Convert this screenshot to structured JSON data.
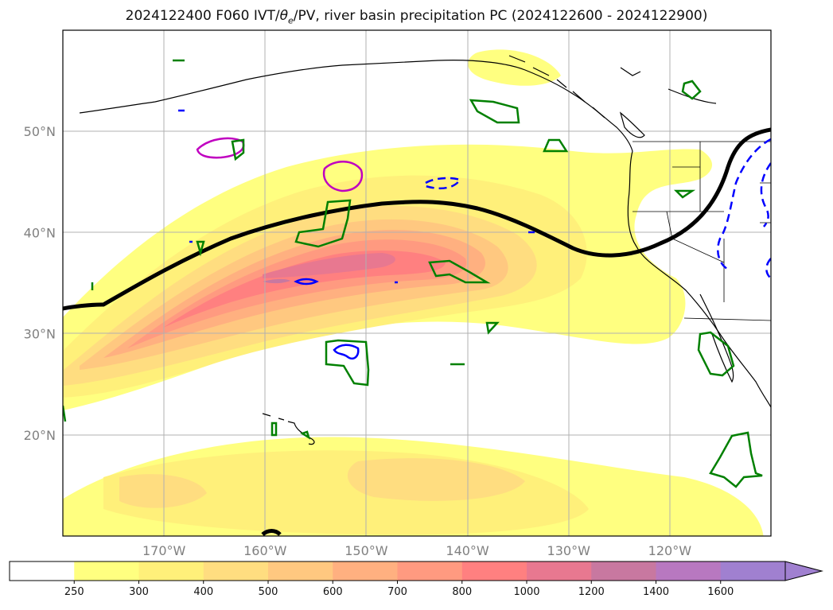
{
  "title": {
    "prefix": "2024122400 F060 IVT/",
    "theta": "θ",
    "theta_sub": "e",
    "suffix": "/PV, river basin precipitation PC (2024122600 - 2024122900)"
  },
  "map": {
    "projection": "plate-carree",
    "lon_range": [
      -180,
      -110
    ],
    "lat_range": [
      10,
      60
    ],
    "grid": true,
    "lat_ticks": [
      {
        "value": 50,
        "label": "50°N"
      },
      {
        "value": 40,
        "label": "40°N"
      },
      {
        "value": 30,
        "label": "30°N"
      },
      {
        "value": 20,
        "label": "20°N"
      }
    ],
    "lon_ticks": [
      {
        "value": -170,
        "label": "170°W"
      },
      {
        "value": -160,
        "label": "160°W"
      },
      {
        "value": -150,
        "label": "150°W"
      },
      {
        "value": -140,
        "label": "140°W"
      },
      {
        "value": -130,
        "label": "130°W"
      },
      {
        "value": -120,
        "label": "120°W"
      }
    ],
    "ivt_field": "filled-contours",
    "theta_e_contour": {
      "color": "#000000",
      "style": "solid-thick"
    },
    "pv_contours": [
      "#0000ff",
      "#c000c0"
    ],
    "precip_pc_contours": {
      "color": "#008000"
    }
  },
  "colorbar": {
    "levels": [
      "250",
      "300",
      "400",
      "500",
      "600",
      "700",
      "800",
      "1000",
      "1200",
      "1400",
      "1600"
    ],
    "colors": [
      "#ffffff",
      "#ffff80",
      "#fff07a",
      "#ffdd80",
      "#ffc880",
      "#ffb080",
      "#ff9a80",
      "#ff8080",
      "#e87890",
      "#c878a0",
      "#b878c0",
      "#a080d0"
    ],
    "extend": "max"
  }
}
